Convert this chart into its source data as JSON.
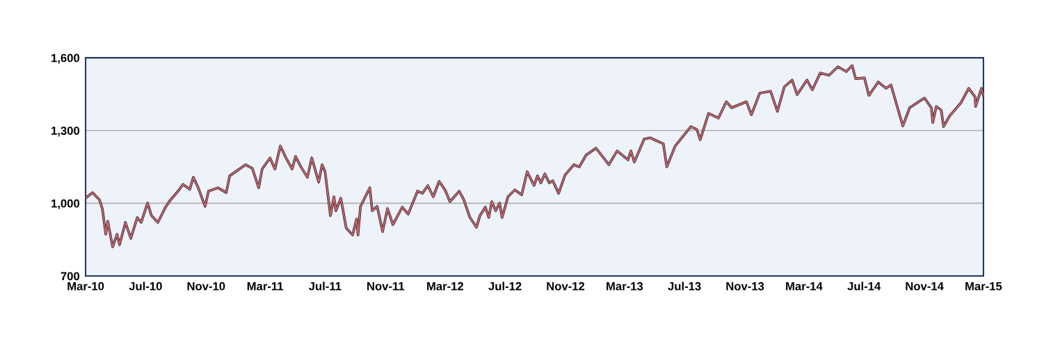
{
  "chart_data": {
    "type": "line",
    "x": [
      "2010-03-01",
      "2010-03-15",
      "2010-03-29",
      "2010-04-04",
      "2010-04-11",
      "2010-04-15",
      "2010-04-25",
      "2010-05-04",
      "2010-05-09",
      "2010-05-21",
      "2010-06-01",
      "2010-06-14",
      "2010-06-22",
      "2010-07-05",
      "2010-07-13",
      "2010-07-26",
      "2010-08-09",
      "2010-08-18",
      "2010-09-07",
      "2010-09-15",
      "2010-09-29",
      "2010-10-06",
      "2010-10-16",
      "2010-10-30",
      "2010-11-06",
      "2010-11-25",
      "2010-12-12",
      "2010-12-19",
      "2011-01-20",
      "2011-02-03",
      "2011-02-16",
      "2011-02-23",
      "2011-03-11",
      "2011-03-21",
      "2011-04-01",
      "2011-04-11",
      "2011-04-25",
      "2011-05-02",
      "2011-05-13",
      "2011-05-26",
      "2011-06-04",
      "2011-06-18",
      "2011-06-25",
      "2011-07-01",
      "2011-07-12",
      "2011-07-19",
      "2011-07-23",
      "2011-08-02",
      "2011-08-13",
      "2011-08-26",
      "2011-09-03",
      "2011-09-06",
      "2011-09-11",
      "2011-09-30",
      "2011-10-05",
      "2011-10-15",
      "2011-10-26",
      "2011-11-05",
      "2011-11-16",
      "2011-12-05",
      "2011-12-17",
      "2012-01-05",
      "2012-01-15",
      "2012-01-26",
      "2012-02-06",
      "2012-02-18",
      "2012-03-01",
      "2012-03-11",
      "2012-03-30",
      "2012-04-08",
      "2012-04-20",
      "2012-05-04",
      "2012-05-11",
      "2012-05-22",
      "2012-05-29",
      "2012-06-04",
      "2012-06-12",
      "2012-06-20",
      "2012-06-25",
      "2012-07-07",
      "2012-07-21",
      "2012-08-04",
      "2012-08-15",
      "2012-08-29",
      "2012-09-05",
      "2012-09-12",
      "2012-09-20",
      "2012-09-29",
      "2012-10-06",
      "2012-10-18",
      "2012-10-31",
      "2012-11-18",
      "2012-11-29",
      "2012-12-13",
      "2013-01-02",
      "2013-01-13",
      "2013-01-28",
      "2013-02-14",
      "2013-03-08",
      "2013-03-14",
      "2013-03-21",
      "2013-04-10",
      "2013-04-22",
      "2013-05-19",
      "2013-05-26",
      "2013-06-12",
      "2013-07-14",
      "2013-07-26",
      "2013-08-02",
      "2013-08-19",
      "2013-09-08",
      "2013-09-24",
      "2013-10-05",
      "2013-11-04",
      "2013-11-14",
      "2013-12-01",
      "2013-12-23",
      "2014-01-06",
      "2014-01-20",
      "2014-02-05",
      "2014-02-15",
      "2014-03-07",
      "2014-03-18",
      "2014-04-03",
      "2014-04-21",
      "2014-05-09",
      "2014-05-26",
      "2014-06-07",
      "2014-06-14",
      "2014-07-02",
      "2014-07-11",
      "2014-07-30",
      "2014-08-15",
      "2014-08-25",
      "2014-09-18",
      "2014-10-02",
      "2014-11-01",
      "2014-11-15",
      "2014-11-18",
      "2014-11-25",
      "2014-12-05",
      "2014-12-10",
      "2014-12-22",
      "2015-01-14",
      "2015-01-30",
      "2015-02-12",
      "2015-02-13",
      "2015-02-25",
      "2015-03-01"
    ],
    "series": [
      {
        "color": "#1f2a44",
        "values": [
          1021,
          1044,
          1015,
          978,
          872,
          926,
          820,
          872,
          829,
          921,
          855,
          941,
          921,
          1001,
          949,
          921,
          978,
          1007,
          1055,
          1078,
          1058,
          1107,
          1064,
          987,
          1050,
          1064,
          1044,
          1113,
          1159,
          1144,
          1064,
          1141,
          1187,
          1141,
          1236,
          1193,
          1141,
          1193,
          1150,
          1107,
          1187,
          1087,
          1159,
          1130,
          949,
          1027,
          969,
          1021,
          898,
          869,
          935,
          869,
          987,
          1064,
          969,
          987,
          883,
          978,
          912,
          984,
          955,
          1050,
          1041,
          1073,
          1027,
          1090,
          1055,
          1007,
          1050,
          1015,
          944,
          901,
          949,
          984,
          941,
          1007,
          969,
          1001,
          941,
          1027,
          1055,
          1035,
          1130,
          1073,
          1113,
          1084,
          1121,
          1084,
          1093,
          1041,
          1116,
          1159,
          1150,
          1199,
          1227,
          1199,
          1159,
          1216,
          1179,
          1216,
          1170,
          1265,
          1270,
          1245,
          1150,
          1236,
          1316,
          1305,
          1262,
          1371,
          1351,
          1419,
          1394,
          1419,
          1365,
          1454,
          1462,
          1379,
          1480,
          1508,
          1448,
          1508,
          1468,
          1537,
          1528,
          1563,
          1543,
          1568,
          1514,
          1517,
          1445,
          1500,
          1474,
          1488,
          1319,
          1394,
          1434,
          1394,
          1333,
          1399,
          1385,
          1316,
          1359,
          1414,
          1474,
          1439,
          1399,
          1474,
          1445
        ]
      },
      {
        "color": "#d0625f",
        "values": [
          1021,
          1044,
          1015,
          978,
          872,
          926,
          820,
          872,
          829,
          921,
          855,
          941,
          921,
          1001,
          949,
          921,
          978,
          1007,
          1055,
          1078,
          1058,
          1107,
          1064,
          987,
          1050,
          1064,
          1044,
          1113,
          1159,
          1144,
          1064,
          1141,
          1187,
          1141,
          1236,
          1193,
          1141,
          1193,
          1150,
          1107,
          1187,
          1087,
          1159,
          1130,
          949,
          1027,
          969,
          1021,
          898,
          869,
          935,
          869,
          987,
          1064,
          969,
          987,
          883,
          978,
          912,
          984,
          955,
          1050,
          1041,
          1073,
          1027,
          1090,
          1055,
          1007,
          1050,
          1015,
          944,
          901,
          949,
          984,
          941,
          1007,
          969,
          1001,
          941,
          1027,
          1055,
          1035,
          1130,
          1073,
          1113,
          1084,
          1121,
          1084,
          1093,
          1041,
          1116,
          1159,
          1150,
          1199,
          1227,
          1199,
          1159,
          1216,
          1179,
          1216,
          1170,
          1265,
          1270,
          1245,
          1150,
          1236,
          1316,
          1305,
          1262,
          1371,
          1351,
          1419,
          1394,
          1419,
          1365,
          1454,
          1462,
          1379,
          1480,
          1508,
          1448,
          1508,
          1468,
          1537,
          1528,
          1563,
          1543,
          1568,
          1514,
          1517,
          1445,
          1500,
          1474,
          1488,
          1319,
          1394,
          1434,
          1394,
          1333,
          1399,
          1385,
          1316,
          1359,
          1414,
          1474,
          1439,
          1399,
          1474,
          1445
        ]
      }
    ],
    "xlim": [
      "2010-03-01",
      "2015-03-01"
    ],
    "xticks": [
      {
        "value": "2010-03-01",
        "label": "Mar-10"
      },
      {
        "value": "2010-07-01",
        "label": "Jul-10"
      },
      {
        "value": "2010-11-01",
        "label": "Nov-10"
      },
      {
        "value": "2011-03-01",
        "label": "Mar-11"
      },
      {
        "value": "2011-07-01",
        "label": "Jul-11"
      },
      {
        "value": "2011-11-01",
        "label": "Nov-11"
      },
      {
        "value": "2012-03-01",
        "label": "Mar-12"
      },
      {
        "value": "2012-07-01",
        "label": "Jul-12"
      },
      {
        "value": "2012-11-01",
        "label": "Nov-12"
      },
      {
        "value": "2013-03-01",
        "label": "Mar-13"
      },
      {
        "value": "2013-07-01",
        "label": "Jul-13"
      },
      {
        "value": "2013-11-01",
        "label": "Nov-13"
      },
      {
        "value": "2014-03-01",
        "label": "Mar-14"
      },
      {
        "value": "2014-07-01",
        "label": "Jul-14"
      },
      {
        "value": "2014-11-01",
        "label": "Nov-14"
      },
      {
        "value": "2015-03-01",
        "label": "Mar-15"
      }
    ],
    "ylim": [
      700,
      1600
    ],
    "yticks": [
      {
        "value": 700,
        "label": "700"
      },
      {
        "value": 1000,
        "label": "1,000"
      },
      {
        "value": 1300,
        "label": "1,300"
      },
      {
        "value": 1600,
        "label": "1,600"
      }
    ],
    "grid": "y",
    "marker": "none",
    "line_style": "solid"
  }
}
